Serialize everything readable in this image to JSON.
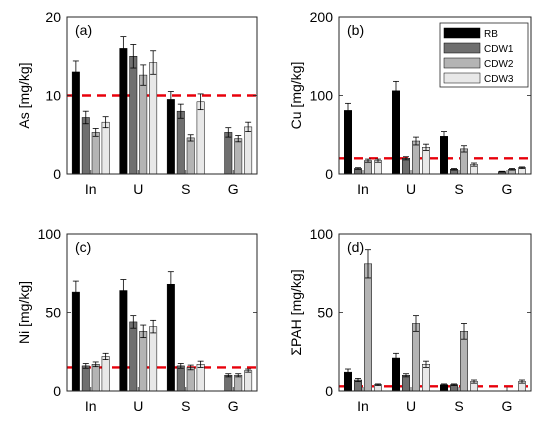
{
  "colors": {
    "RB": "#000000",
    "CDW1": "#6f6f6f",
    "CDW2": "#b4b4b4",
    "CDW3": "#e8e8e8",
    "threshold": "#e8000b",
    "axis": "#262626"
  },
  "legend": {
    "location": "upper-right of panel (b)",
    "entries": [
      "RB",
      "CDW1",
      "CDW2",
      "CDW3"
    ]
  },
  "chart_data": [
    {
      "type": "bar",
      "panel_label": "(a)",
      "ylabel": "As [mg/kg]",
      "categories": [
        "In",
        "U",
        "S",
        "G"
      ],
      "ylim": [
        0,
        20
      ],
      "yticks": [
        0,
        10,
        20
      ],
      "threshold": 10,
      "series": [
        {
          "name": "RB",
          "values": [
            13,
            16,
            9.5,
            null
          ],
          "errors": [
            1.4,
            1.5,
            1.0,
            null
          ]
        },
        {
          "name": "CDW1",
          "values": [
            7.2,
            15,
            8,
            5.3
          ],
          "errors": [
            0.8,
            1.5,
            0.9,
            0.6
          ]
        },
        {
          "name": "CDW2",
          "values": [
            5.3,
            12.6,
            4.6,
            4.5
          ],
          "errors": [
            0.5,
            1.3,
            0.4,
            0.4
          ]
        },
        {
          "name": "CDW3",
          "values": [
            6.6,
            14.2,
            9.2,
            6
          ],
          "errors": [
            0.7,
            1.5,
            1.0,
            0.6
          ]
        }
      ]
    },
    {
      "type": "bar",
      "panel_label": "(b)",
      "ylabel": "Cu [mg/kg]",
      "categories": [
        "In",
        "U",
        "S",
        "G"
      ],
      "ylim": [
        0,
        200
      ],
      "yticks": [
        0,
        100,
        200
      ],
      "threshold": 20,
      "series": [
        {
          "name": "RB",
          "values": [
            81,
            106,
            48,
            null
          ],
          "errors": [
            9,
            12,
            6,
            null
          ]
        },
        {
          "name": "CDW1",
          "values": [
            7,
            20,
            6,
            3
          ],
          "errors": [
            1,
            2,
            1,
            0.5
          ]
        },
        {
          "name": "CDW2",
          "values": [
            17,
            42,
            32,
            6
          ],
          "errors": [
            2,
            5,
            4,
            1
          ]
        },
        {
          "name": "CDW3",
          "values": [
            17,
            34,
            12,
            8
          ],
          "errors": [
            2,
            4,
            2,
            1
          ]
        }
      ]
    },
    {
      "type": "bar",
      "panel_label": "(c)",
      "ylabel": "Ni [mg/kg]",
      "categories": [
        "In",
        "U",
        "S",
        "G"
      ],
      "ylim": [
        0,
        100
      ],
      "yticks": [
        0,
        50,
        100
      ],
      "threshold": 15,
      "series": [
        {
          "name": "RB",
          "values": [
            63,
            64,
            68,
            null
          ],
          "errors": [
            7,
            7,
            8,
            null
          ]
        },
        {
          "name": "CDW1",
          "values": [
            16,
            44,
            16,
            10
          ],
          "errors": [
            1.5,
            4,
            1.5,
            1
          ]
        },
        {
          "name": "CDW2",
          "values": [
            17,
            38,
            15,
            10
          ],
          "errors": [
            1.5,
            4,
            1.5,
            1
          ]
        },
        {
          "name": "CDW3",
          "values": [
            22,
            41,
            17,
            13
          ],
          "errors": [
            2,
            4,
            2,
            1
          ]
        }
      ]
    },
    {
      "type": "bar",
      "panel_label": "(d)",
      "ylabel": "ΣPAH [mg/kg]",
      "categories": [
        "In",
        "U",
        "S",
        "G"
      ],
      "ylim": [
        0,
        100
      ],
      "yticks": [
        0,
        50,
        100
      ],
      "threshold": 3,
      "series": [
        {
          "name": "RB",
          "values": [
            12,
            21,
            4,
            null
          ],
          "errors": [
            2,
            3,
            0.5,
            null
          ]
        },
        {
          "name": "CDW1",
          "values": [
            7,
            10,
            4,
            null
          ],
          "errors": [
            1,
            1,
            0.5,
            null
          ]
        },
        {
          "name": "CDW2",
          "values": [
            81,
            43,
            38,
            0
          ],
          "errors": [
            9,
            5,
            5,
            0
          ]
        },
        {
          "name": "CDW3",
          "values": [
            4,
            17,
            6,
            6
          ],
          "errors": [
            0.5,
            2,
            1,
            1
          ]
        }
      ]
    }
  ]
}
